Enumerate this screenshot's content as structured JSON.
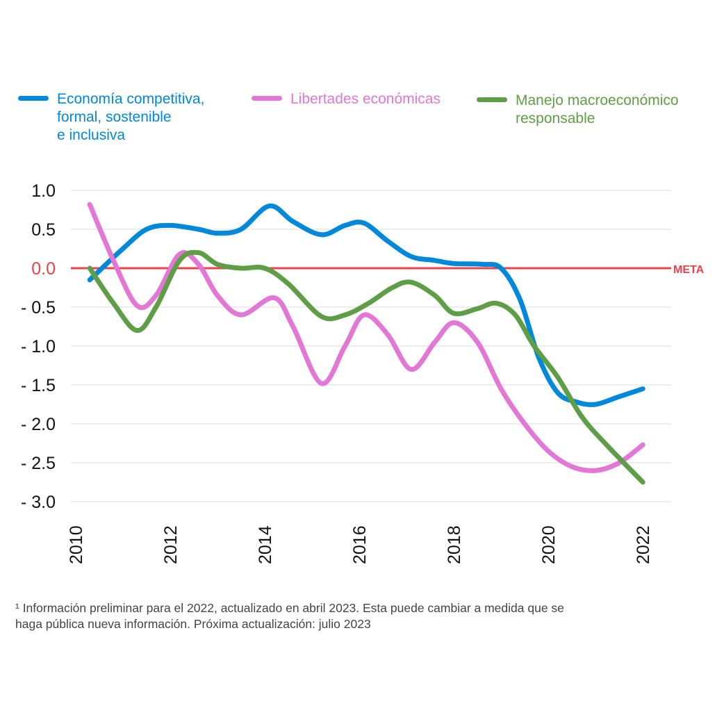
{
  "chart_data": {
    "type": "line",
    "x": [
      2010.3,
      2011.0,
      2011.5,
      2012.0,
      2012.6,
      2013.0,
      2013.6,
      2014.0,
      2014.6,
      2015.0,
      2015.6,
      2016.0,
      2016.6,
      2017.0,
      2017.6,
      2018.0,
      2018.6,
      2019.0,
      2019.4,
      2020.0,
      2020.6,
      2021.0,
      2021.6,
      2022.0
    ],
    "series": [
      {
        "name": "Economía competitiva,\nformal, sostenible\ne inclusiva",
        "color": "#0089DB",
        "x": [
          2010.3,
          2011.0,
          2011.5,
          2012.0,
          2012.6,
          2013.0,
          2013.5,
          2014.1,
          2014.6,
          2015.2,
          2015.7,
          2016.1,
          2016.6,
          2017.1,
          2017.6,
          2018.0,
          2018.6,
          2019.0,
          2019.4,
          2019.8,
          2020.2,
          2020.6,
          2021.0,
          2021.5,
          2022.0
        ],
        "values": [
          -0.15,
          0.25,
          0.5,
          0.55,
          0.5,
          0.45,
          0.5,
          0.8,
          0.6,
          0.43,
          0.55,
          0.58,
          0.35,
          0.15,
          0.1,
          0.06,
          0.05,
          0.0,
          -0.4,
          -1.15,
          -1.6,
          -1.72,
          -1.75,
          -1.65,
          -1.55
        ]
      },
      {
        "name": "Libertades económicas",
        "color": "#E277D6",
        "x": [
          2010.3,
          2010.8,
          2011.3,
          2011.7,
          2012.2,
          2012.6,
          2013.0,
          2013.5,
          2014.2,
          2014.6,
          2015.2,
          2015.7,
          2016.1,
          2016.6,
          2017.1,
          2017.6,
          2018.0,
          2018.5,
          2019.0,
          2019.5,
          2020.0,
          2020.5,
          2021.0,
          2021.5,
          2022.0
        ],
        "values": [
          0.82,
          0.1,
          -0.48,
          -0.35,
          0.18,
          0.05,
          -0.35,
          -0.6,
          -0.38,
          -0.75,
          -1.48,
          -1.0,
          -0.6,
          -0.85,
          -1.3,
          -0.95,
          -0.7,
          -0.95,
          -1.55,
          -2.0,
          -2.35,
          -2.55,
          -2.6,
          -2.5,
          -2.27
        ]
      },
      {
        "name": "Manejo macroeconómico\nresponsable",
        "color": "#5E9E46",
        "x": [
          2010.3,
          2010.8,
          2011.3,
          2011.7,
          2012.2,
          2012.6,
          2013.0,
          2013.5,
          2014.0,
          2014.5,
          2015.2,
          2015.7,
          2016.2,
          2016.7,
          2017.1,
          2017.6,
          2018.0,
          2018.5,
          2018.9,
          2019.3,
          2019.7,
          2020.2,
          2020.7,
          2021.2,
          2022.0
        ],
        "values": [
          0.0,
          -0.45,
          -0.8,
          -0.5,
          0.1,
          0.2,
          0.05,
          0.0,
          0.0,
          -0.2,
          -0.62,
          -0.6,
          -0.45,
          -0.25,
          -0.18,
          -0.35,
          -0.58,
          -0.52,
          -0.45,
          -0.6,
          -1.0,
          -1.4,
          -1.9,
          -2.25,
          -2.75
        ]
      }
    ],
    "ylim": [
      -3.0,
      1.0
    ],
    "xlim": [
      2009.9,
      2022.6
    ],
    "yticks": [
      {
        "value": 1.0,
        "label": "1.0"
      },
      {
        "value": 0.5,
        "label": "0.5"
      },
      {
        "value": 0.0,
        "label": "0.0"
      },
      {
        "value": -0.5,
        "label": "- 0.5"
      },
      {
        "value": -1.0,
        "label": "- 1.0"
      },
      {
        "value": -1.5,
        "label": "- 1.5"
      },
      {
        "value": -2.0,
        "label": "- 2.0"
      },
      {
        "value": -2.5,
        "label": "- 2.5"
      },
      {
        "value": -3.0,
        "label": "- 3.0"
      }
    ],
    "xticks": [
      {
        "value": 2010,
        "label": "2010"
      },
      {
        "value": 2012,
        "label": "2012"
      },
      {
        "value": 2014,
        "label": "2014"
      },
      {
        "value": 2016,
        "label": "2016"
      },
      {
        "value": 2018,
        "label": "2018"
      },
      {
        "value": 2020,
        "label": "2020"
      },
      {
        "value": 2022,
        "label": "2022"
      }
    ],
    "target_line": {
      "value": 0.0,
      "label": "META",
      "color": "#F0414B"
    },
    "grid": true,
    "legend_position": "top"
  },
  "footnote": "¹ Información preliminar para el 2022, actualizado en abril 2023. Esta puede cambiar a medida que se\n haga pública nueva información. Próxima actualización: julio 2023"
}
